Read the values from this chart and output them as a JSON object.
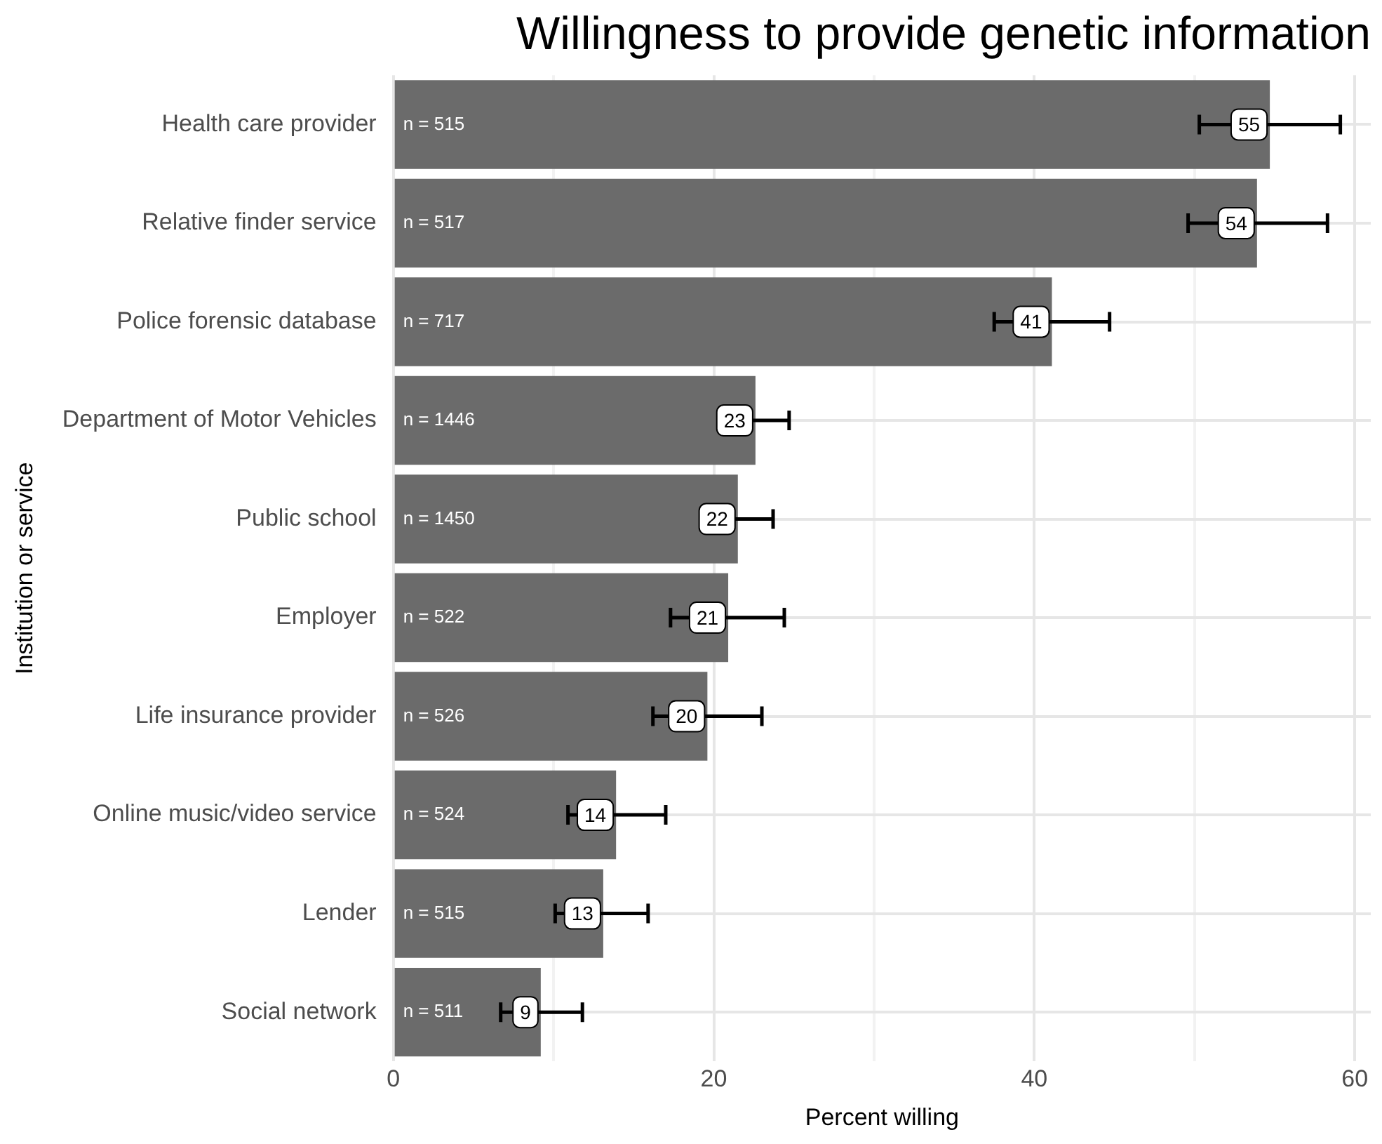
{
  "chart_data": {
    "type": "bar",
    "orientation": "horizontal",
    "title": "Willingness to provide genetic information",
    "xlabel": "Percent willing",
    "ylabel": "Institution or service",
    "categories": [
      "Health care provider",
      "Relative finder service",
      "Police forensic database",
      "Department of Motor Vehicles",
      "Public school",
      "Employer",
      "Life insurance provider",
      "Online music/video service",
      "Lender",
      "Social network"
    ],
    "values": [
      54.7,
      53.9,
      41.1,
      22.6,
      21.5,
      20.9,
      19.6,
      13.9,
      13.1,
      9.2
    ],
    "value_labels": [
      "55",
      "54",
      "41",
      "23",
      "22",
      "21",
      "20",
      "14",
      "13",
      "9"
    ],
    "errors": [
      [
        50.3,
        59.1
      ],
      [
        49.6,
        58.3
      ],
      [
        37.5,
        44.7
      ],
      [
        20.4,
        24.7
      ],
      [
        19.4,
        23.7
      ],
      [
        17.3,
        24.4
      ],
      [
        16.2,
        23.0
      ],
      [
        10.9,
        17.0
      ],
      [
        10.1,
        15.9
      ],
      [
        6.7,
        11.8
      ]
    ],
    "color": "#6b6b6b",
    "xlim": [
      0,
      61
    ],
    "xticks": [
      0,
      {
        "value": 10,
        "label": null
      },
      20,
      {
        "value": 30,
        "label": null
      },
      40,
      {
        "value": 50,
        "label": null
      },
      60
    ],
    "grid": true,
    "legend": false,
    "annotations": [
      "n = 515",
      "n = 517",
      "n = 717",
      "n = 1446",
      "n = 1450",
      "n = 522",
      "n = 526",
      "n = 524",
      "n = 515",
      "n = 511"
    ]
  }
}
